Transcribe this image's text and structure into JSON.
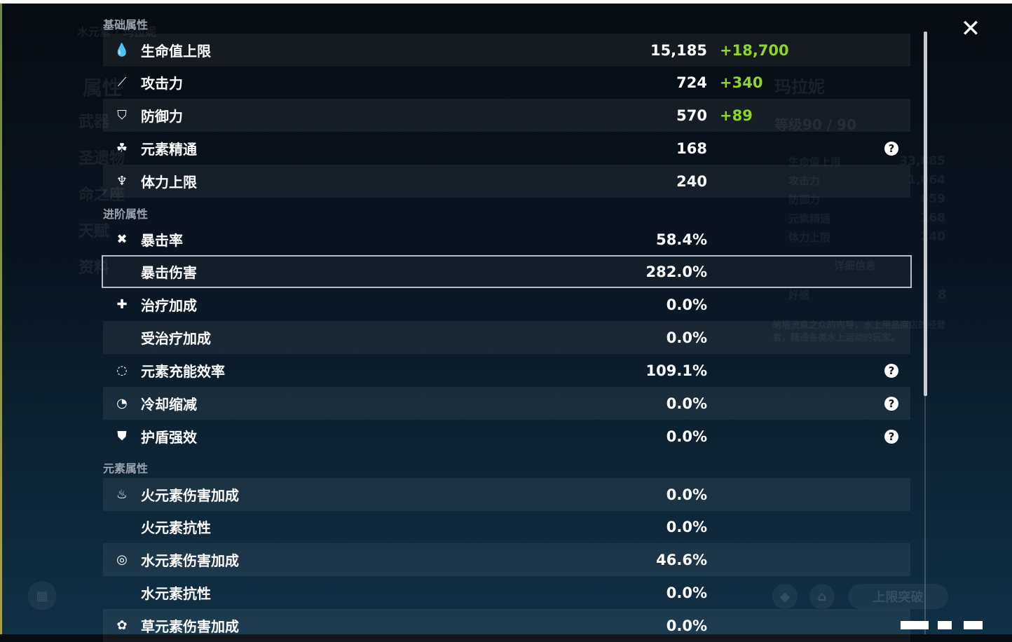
{
  "background": {
    "character_element": "水元素 · 玛拉妮",
    "menu": [
      "属性",
      "武器",
      "圣遗物",
      "命之座",
      "天赋",
      "资料"
    ],
    "name": "玛拉妮",
    "level": "等级90 / 90",
    "stats": [
      {
        "label": "生命值上限",
        "value": "33,885"
      },
      {
        "label": "攻击力",
        "value": "1,064"
      },
      {
        "label": "防御力",
        "value": "659"
      },
      {
        "label": "元素精通",
        "value": "168"
      },
      {
        "label": "体力上限",
        "value": "240"
      }
    ],
    "details_button": "详细信息",
    "friendship_label": "好感",
    "friendship_value": "8",
    "description": "纳塔流泉之众的向导，水上用品商店的经营者，精通各类水上运动的玩家。",
    "ascend_button": "上限突破"
  },
  "sections": [
    {
      "title": "基础属性",
      "rows": [
        {
          "icon": "hp-drop-icon",
          "label": "生命值上限",
          "value": "15,185",
          "bonus": "+18,700"
        },
        {
          "icon": "sword-icon",
          "label": "攻击力",
          "value": "724",
          "bonus": "+340"
        },
        {
          "icon": "shield-icon",
          "label": "防御力",
          "value": "570",
          "bonus": "+89"
        },
        {
          "icon": "elemental-mastery-icon",
          "label": "元素精通",
          "value": "168",
          "help": true
        },
        {
          "icon": "stamina-icon",
          "label": "体力上限",
          "value": "240"
        }
      ]
    },
    {
      "title": "进阶属性",
      "rows": [
        {
          "icon": "crit-rate-icon",
          "label": "暴击率",
          "value": "58.4%"
        },
        {
          "icon": "",
          "label": "暴击伤害",
          "value": "282.0%",
          "selected": true
        },
        {
          "icon": "healing-cross-icon",
          "label": "治疗加成",
          "value": "0.0%"
        },
        {
          "icon": "",
          "label": "受治疗加成",
          "value": "0.0%"
        },
        {
          "icon": "energy-recharge-icon",
          "label": "元素充能效率",
          "value": "109.1%",
          "help": true
        },
        {
          "icon": "cooldown-icon",
          "label": "冷却缩减",
          "value": "0.0%",
          "help": true
        },
        {
          "icon": "shield-strength-icon",
          "label": "护盾强效",
          "value": "0.0%",
          "help": true
        }
      ]
    },
    {
      "title": "元素属性",
      "rows": [
        {
          "icon": "pyro-icon",
          "label": "火元素伤害加成",
          "value": "0.0%"
        },
        {
          "icon": "",
          "label": "火元素抗性",
          "value": "0.0%"
        },
        {
          "icon": "hydro-icon",
          "label": "水元素伤害加成",
          "value": "46.6%"
        },
        {
          "icon": "",
          "label": "水元素抗性",
          "value": "0.0%"
        },
        {
          "icon": "dendro-icon",
          "label": "草元素伤害加成",
          "value": "0.0%"
        }
      ]
    }
  ],
  "colors": {
    "bonus": "#8fd42a",
    "selection_border": "#b9bec4"
  }
}
